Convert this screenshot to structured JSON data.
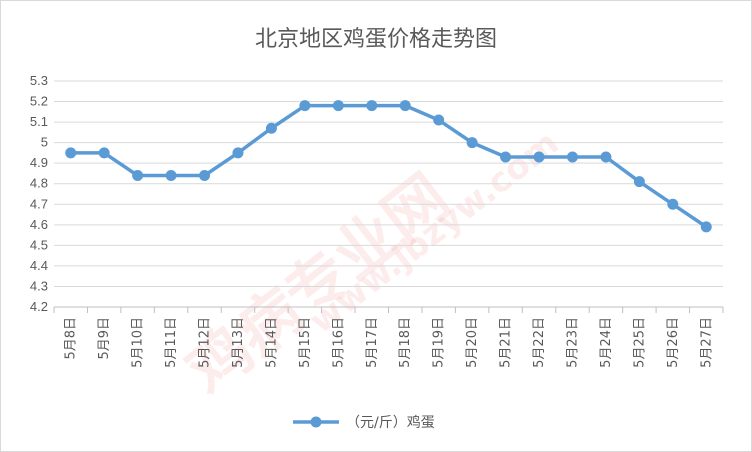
{
  "chart_data": {
    "type": "line",
    "title": "北京地区鸡蛋价格走势图",
    "categories": [
      "5月8日",
      "5月9日",
      "5月10日",
      "5月11日",
      "5月12日",
      "5月13日",
      "5月14日",
      "5月15日",
      "5月16日",
      "5月17日",
      "5月18日",
      "5月19日",
      "5月20日",
      "5月21日",
      "5月22日",
      "5月23日",
      "5月24日",
      "5月25日",
      "5月26日",
      "5月27日"
    ],
    "series": [
      {
        "name": "（元/斤）鸡蛋",
        "color": "#5b9bd5",
        "values": [
          4.95,
          4.95,
          4.84,
          4.84,
          4.84,
          4.95,
          5.07,
          5.18,
          5.18,
          5.18,
          5.18,
          5.11,
          5.0,
          4.93,
          4.93,
          4.93,
          4.93,
          4.81,
          4.7,
          4.59
        ]
      }
    ],
    "ylim": [
      4.2,
      5.3
    ],
    "yticks": [
      "4.2",
      "4.3",
      "4.4",
      "4.5",
      "4.6",
      "4.7",
      "4.8",
      "4.9",
      "5",
      "5.1",
      "5.2",
      "5.3"
    ],
    "grid": true,
    "legend_position": "bottom"
  },
  "watermark": {
    "text": "鸡病专业网",
    "url": "www.jbzyw.com",
    "color": "#e23a2e"
  }
}
